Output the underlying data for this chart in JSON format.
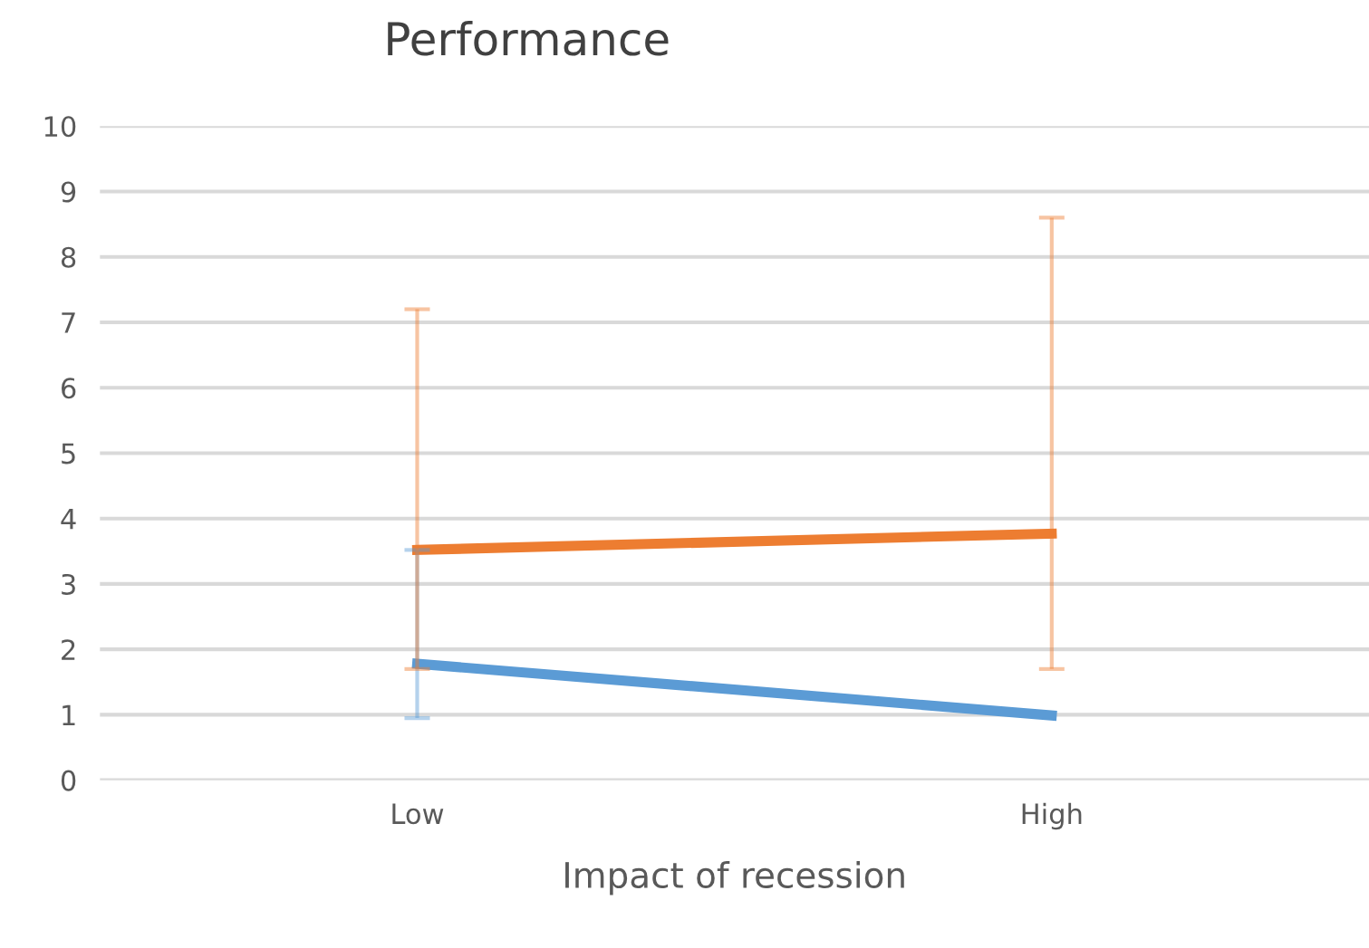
{
  "chart_data": {
    "type": "line",
    "title": "Performance",
    "xlabel": "Impact of recession",
    "categories": [
      "Low",
      "High"
    ],
    "series": [
      {
        "color": "#5b9bd5",
        "values": [
          1.78,
          0.99
        ],
        "errors": [
          [
            0.95,
            3.52
          ],
          null
        ]
      },
      {
        "color": "#ed7d31",
        "values": [
          3.52,
          3.77
        ],
        "errors": [
          [
            1.7,
            7.2
          ],
          [
            1.7,
            8.6
          ]
        ]
      }
    ],
    "ylim": [
      0,
      10
    ],
    "yticks": [
      0,
      1,
      2,
      3,
      4,
      5,
      6,
      7,
      8,
      9,
      10
    ],
    "grid": "y",
    "legend": false,
    "line_style": "solid"
  }
}
